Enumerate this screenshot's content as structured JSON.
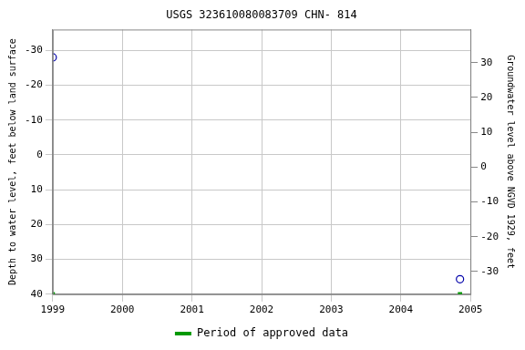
{
  "chart_data": {
    "type": "scatter",
    "title": "USGS 323610080083709 CHN- 814",
    "y_label": "Depth to water level, feet below land surface",
    "y2_label": "Groundwater level above NGVD 1929, feet",
    "xlim": [
      1999,
      2005
    ],
    "xticks": [
      1999,
      2000,
      2001,
      2002,
      2003,
      2004,
      2005
    ],
    "ylim": [
      40,
      -36
    ],
    "yticks": [
      -30,
      -20,
      -10,
      0,
      10,
      20,
      30,
      40
    ],
    "y2lim": [
      -36.5,
      39.5
    ],
    "y2ticks": [
      -30,
      -20,
      -10,
      0,
      10,
      20,
      30
    ],
    "grid": true,
    "legend": "bottom",
    "series": [
      {
        "color": "#0000aa",
        "marker": "open_circle",
        "x": [
          1999.0,
          2004.85
        ],
        "values": [
          -28,
          35.7
        ]
      },
      {
        "name": "Period of approved data",
        "color": "#009900",
        "marker": "square",
        "x": [
          1999.0,
          2004.85
        ],
        "values": [
          40,
          40
        ]
      }
    ]
  }
}
